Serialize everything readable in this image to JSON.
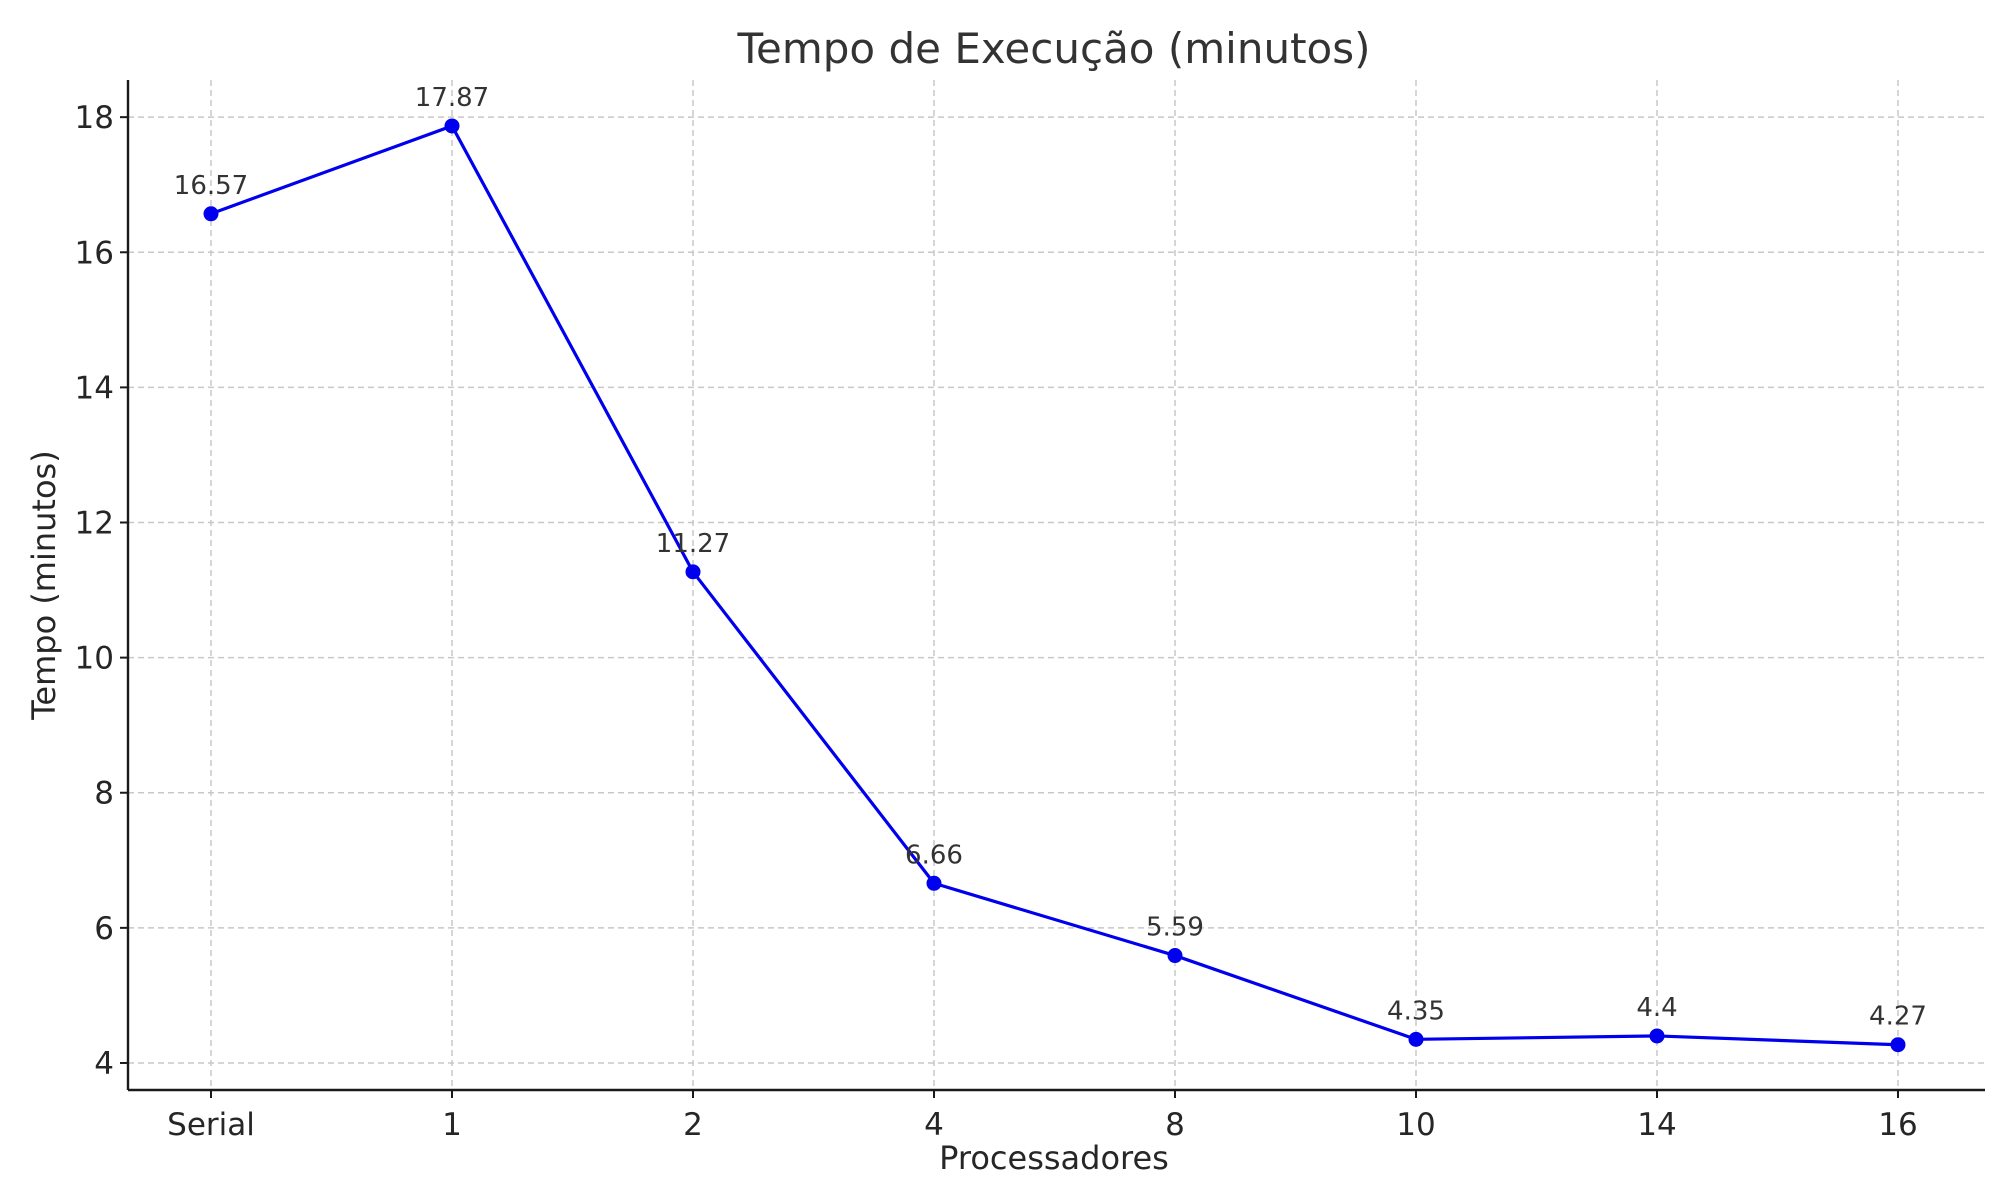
{
  "chart_data": {
    "type": "line",
    "title": "Tempo de Execução (minutos)",
    "xlabel": "Processadores",
    "ylabel": "Tempo (minutos)",
    "categories": [
      "Serial",
      "1",
      "2",
      "4",
      "8",
      "10",
      "14",
      "16"
    ],
    "series": [
      {
        "values": [
          16.57,
          17.87,
          11.27,
          6.66,
          5.59,
          4.35,
          4.4,
          4.27
        ],
        "data_labels": [
          "16.57",
          "17.87",
          "11.27",
          "6.66",
          "5.59",
          "4.35",
          "4.4",
          "4.27"
        ],
        "color": "#0000ee",
        "marker": "circle"
      }
    ],
    "yticks": [
      4,
      6,
      8,
      10,
      12,
      14,
      16,
      18
    ],
    "ylim": [
      3.6,
      18.55
    ],
    "grid": true
  }
}
